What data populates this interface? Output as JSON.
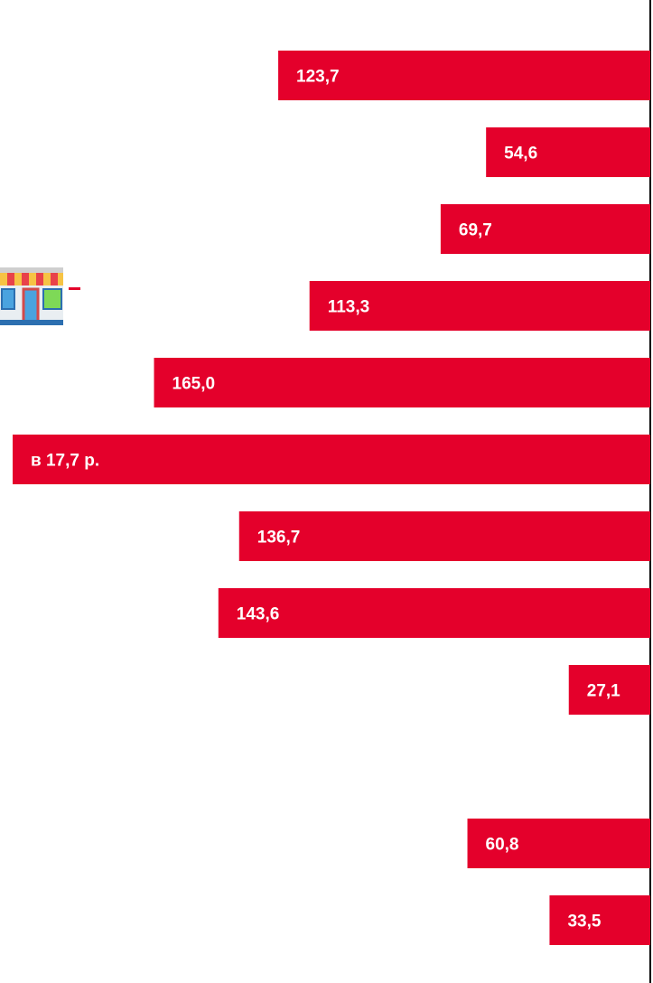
{
  "colors": {
    "bar": "#e4002b",
    "bar_label": "#ffffff",
    "axis": "#000000"
  },
  "icons": {
    "shop": "shop-storefront-icon"
  },
  "chart_data": {
    "type": "bar",
    "orientation": "horizontal",
    "direction": "right-to-left",
    "categories": [],
    "values": [
      123.7,
      54.6,
      69.7,
      113.3,
      165.0,
      212.0,
      136.7,
      143.6,
      27.1,
      null,
      60.8,
      33.5
    ],
    "labels": [
      "123,7",
      "54,6",
      "69,7",
      "113,3",
      "165,0",
      "в 17,7 р.",
      "136,7",
      "143,6",
      "27,1",
      "",
      "60,8",
      "33,5"
    ],
    "title": "",
    "xlabel": "",
    "ylabel": "",
    "xlim": [
      0,
      212
    ],
    "grid": false,
    "legend": "none"
  }
}
